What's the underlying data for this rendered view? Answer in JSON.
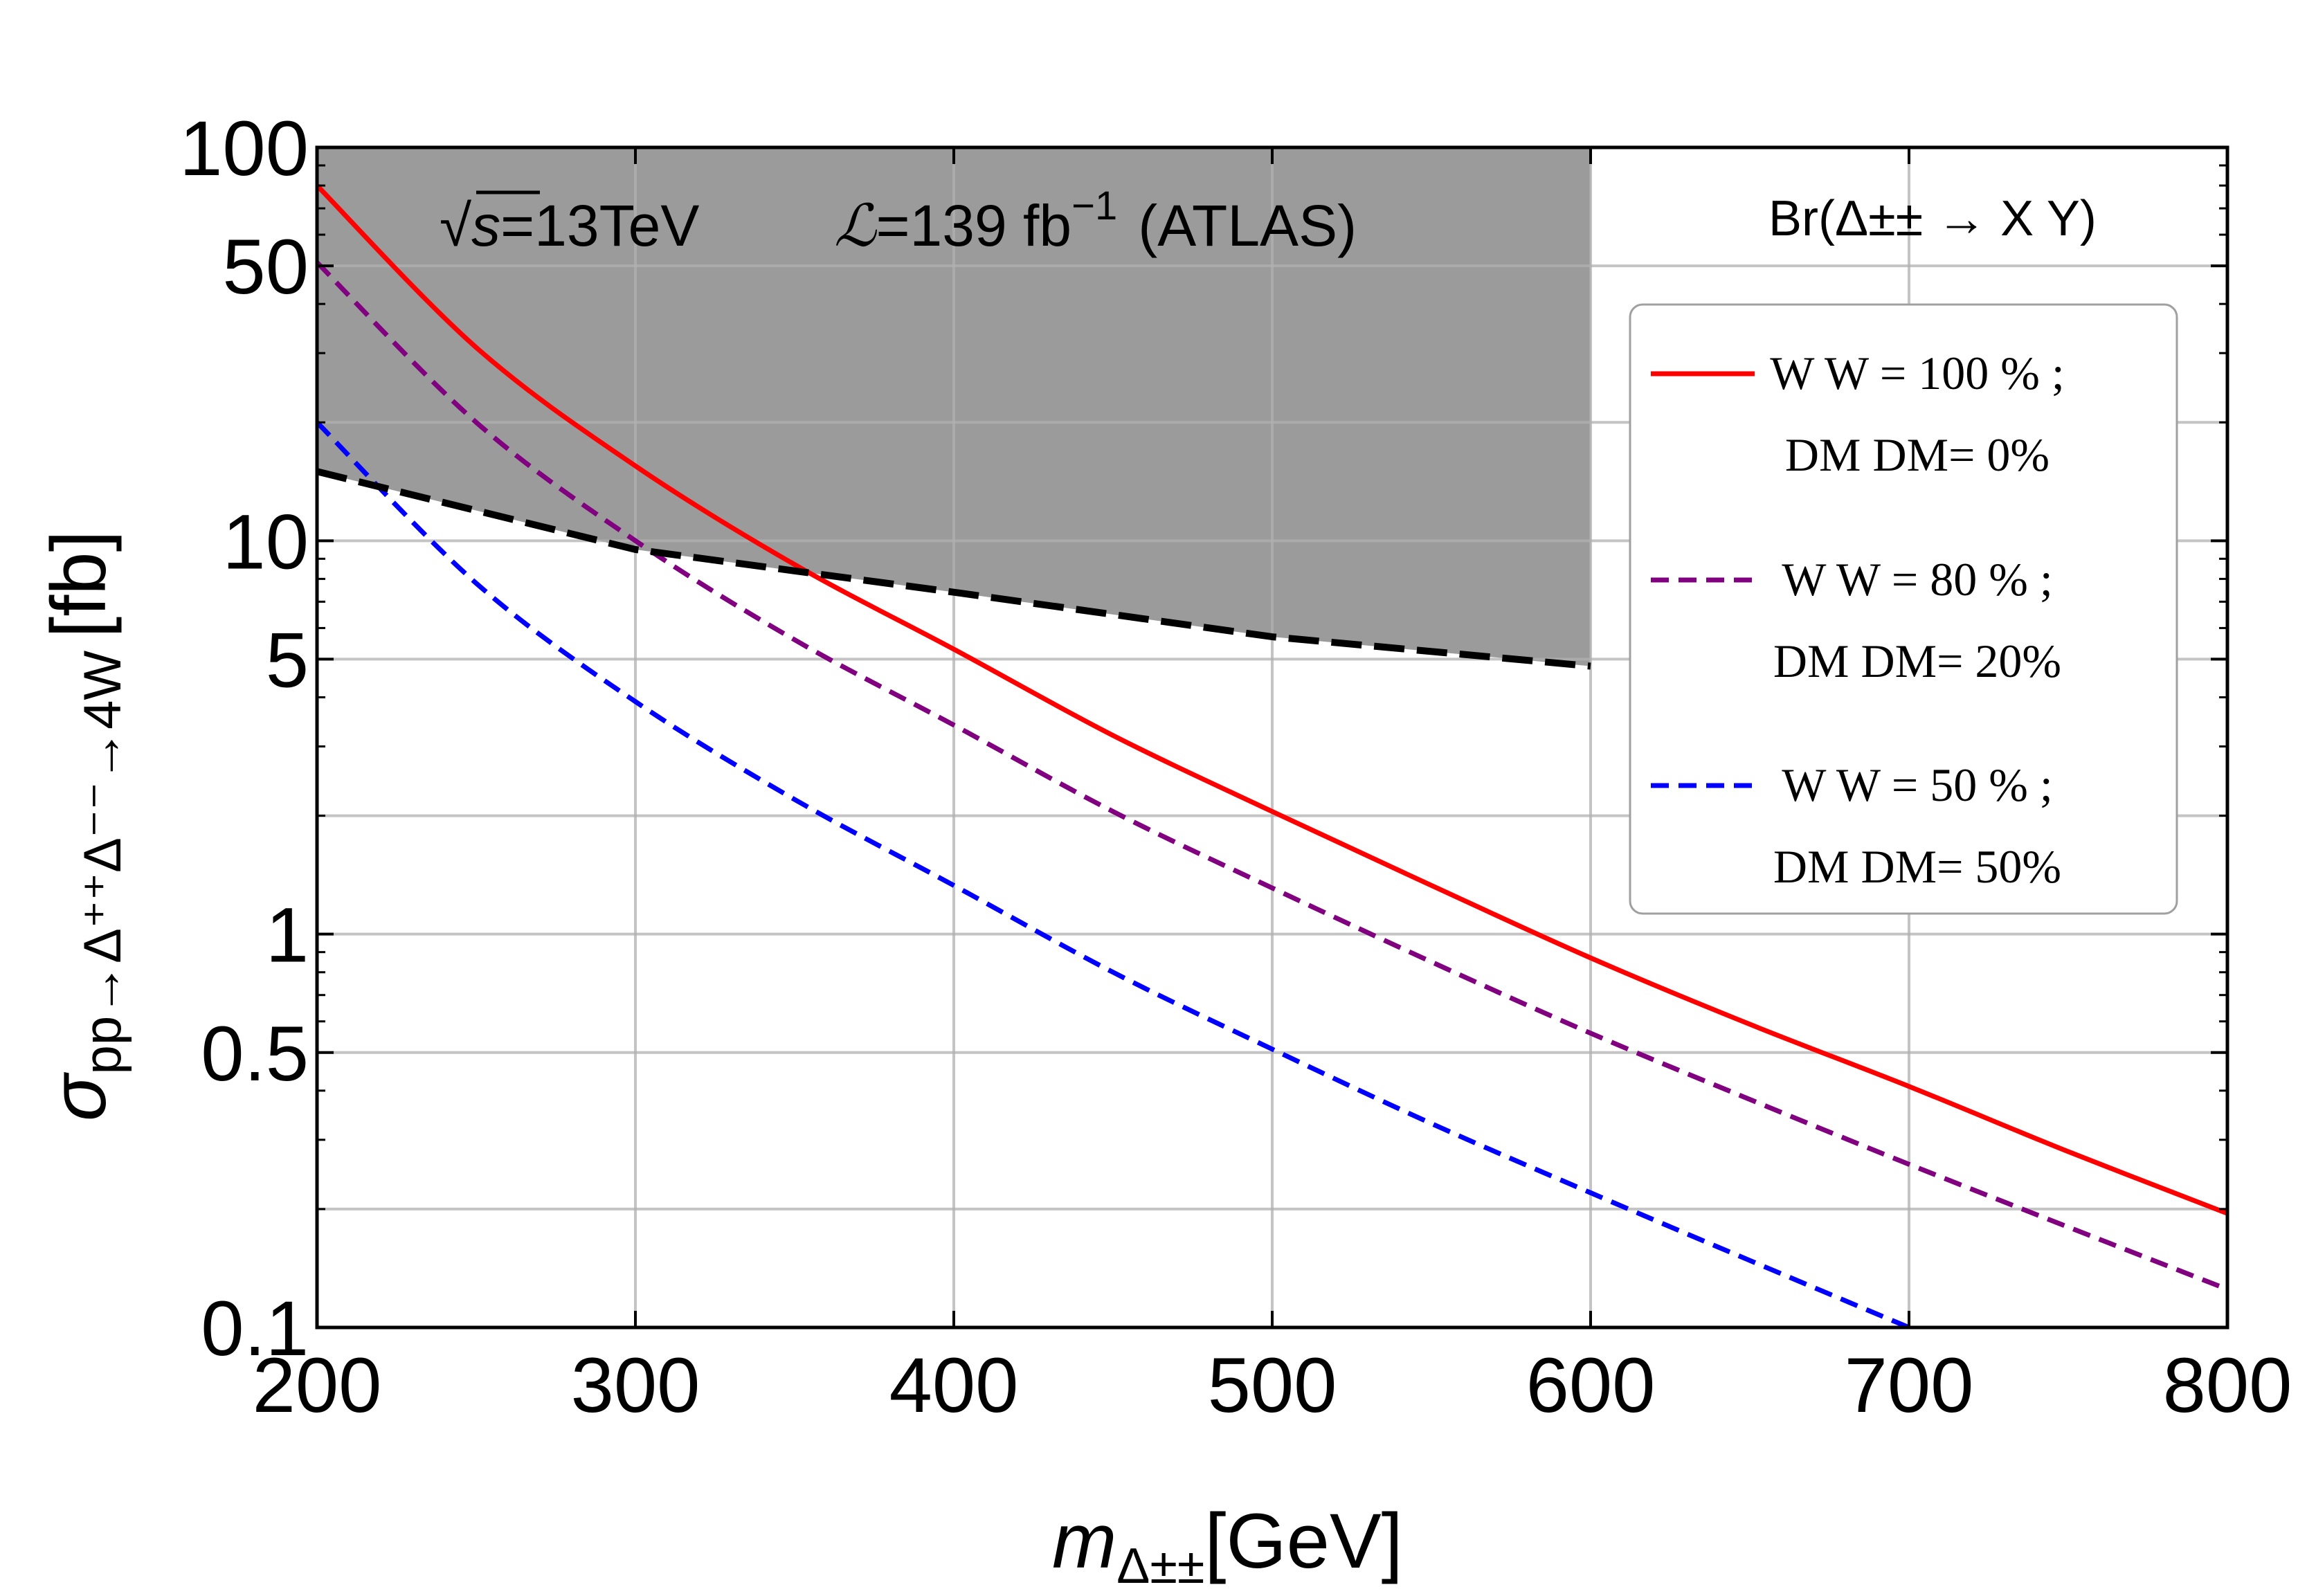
{
  "chart_data": {
    "type": "line",
    "x_range": [
      200,
      800
    ],
    "y_range": [
      0.1,
      100
    ],
    "y_scale": "log",
    "xlabel": {
      "main": "m",
      "sub": "Δ±±",
      "unit": "[GeV]"
    },
    "ylabel": {
      "main": "σ",
      "sub": "pp→Δ⁺⁺Δ⁻⁻→4W",
      "unit": "[fb]"
    },
    "x_ticks": [
      {
        "value": 200,
        "label": "200"
      },
      {
        "value": 300,
        "label": "300"
      },
      {
        "value": 400,
        "label": "400"
      },
      {
        "value": 500,
        "label": "500"
      },
      {
        "value": 600,
        "label": "600"
      },
      {
        "value": 700,
        "label": "700"
      },
      {
        "value": 800,
        "label": "800"
      }
    ],
    "y_ticks": [
      {
        "value": 0.1,
        "label": "0.1"
      },
      {
        "value": 0.5,
        "label": "0.5"
      },
      {
        "value": 1,
        "label": "1"
      },
      {
        "value": 5,
        "label": "5"
      },
      {
        "value": 10,
        "label": "10"
      },
      {
        "value": 50,
        "label": "50"
      },
      {
        "value": 100,
        "label": "100"
      }
    ],
    "y_grid": [
      0.1,
      0.2,
      0.5,
      1,
      2,
      5,
      10,
      20,
      50,
      100
    ],
    "grid": true,
    "annotation": {
      "sqrt": "√",
      "s": "s",
      "energy": "=13TeV",
      "lumi_symbol": "ℒ",
      "lumi": "=139 fb",
      "lumi_exp": "−1",
      "experiment": "(ATLAS)"
    },
    "legend_title": "Br(Δ±± → X Y)",
    "legend_position": "right",
    "exclusion": {
      "name": "ATLAS limit",
      "color": "#9b9b9b",
      "line_color": "#000000",
      "x": [
        200,
        300,
        400,
        500,
        600
      ],
      "y": [
        15,
        9.5,
        7.4,
        5.7,
        4.8
      ]
    },
    "series": [
      {
        "name": "WW100",
        "label_line1": "W W = 100 % ;",
        "label_line2": "DM DM= 0%",
        "color": "#ff0000",
        "dash": "solid",
        "x": [
          200,
          250,
          300,
          350,
          400,
          450,
          500,
          550,
          600,
          650,
          700,
          750,
          800
        ],
        "y": [
          80,
          31,
          15.5,
          8.7,
          5.3,
          3.2,
          2.05,
          1.33,
          0.87,
          0.59,
          0.41,
          0.28,
          0.195
        ]
      },
      {
        "name": "WW80",
        "label_line1": "W W = 80 % ;",
        "label_line2": "DM DM= 20%",
        "color": "#800080",
        "dash": "dashed",
        "x": [
          200,
          250,
          300,
          350,
          400,
          450,
          500,
          550,
          600,
          650,
          700,
          750,
          800
        ],
        "y": [
          51,
          20,
          10,
          5.6,
          3.4,
          2.05,
          1.31,
          0.85,
          0.56,
          0.38,
          0.26,
          0.18,
          0.125
        ]
      },
      {
        "name": "WW50",
        "label_line1": "W W = 50 % ;",
        "label_line2": "DM DM= 50%",
        "color": "#0000ff",
        "dash": "dashed",
        "x": [
          200,
          250,
          300,
          350,
          400,
          450,
          500,
          550,
          600,
          650,
          700
        ],
        "y": [
          20,
          7.8,
          3.9,
          2.2,
          1.33,
          0.8,
          0.51,
          0.33,
          0.22,
          0.148,
          0.1
        ]
      }
    ]
  }
}
